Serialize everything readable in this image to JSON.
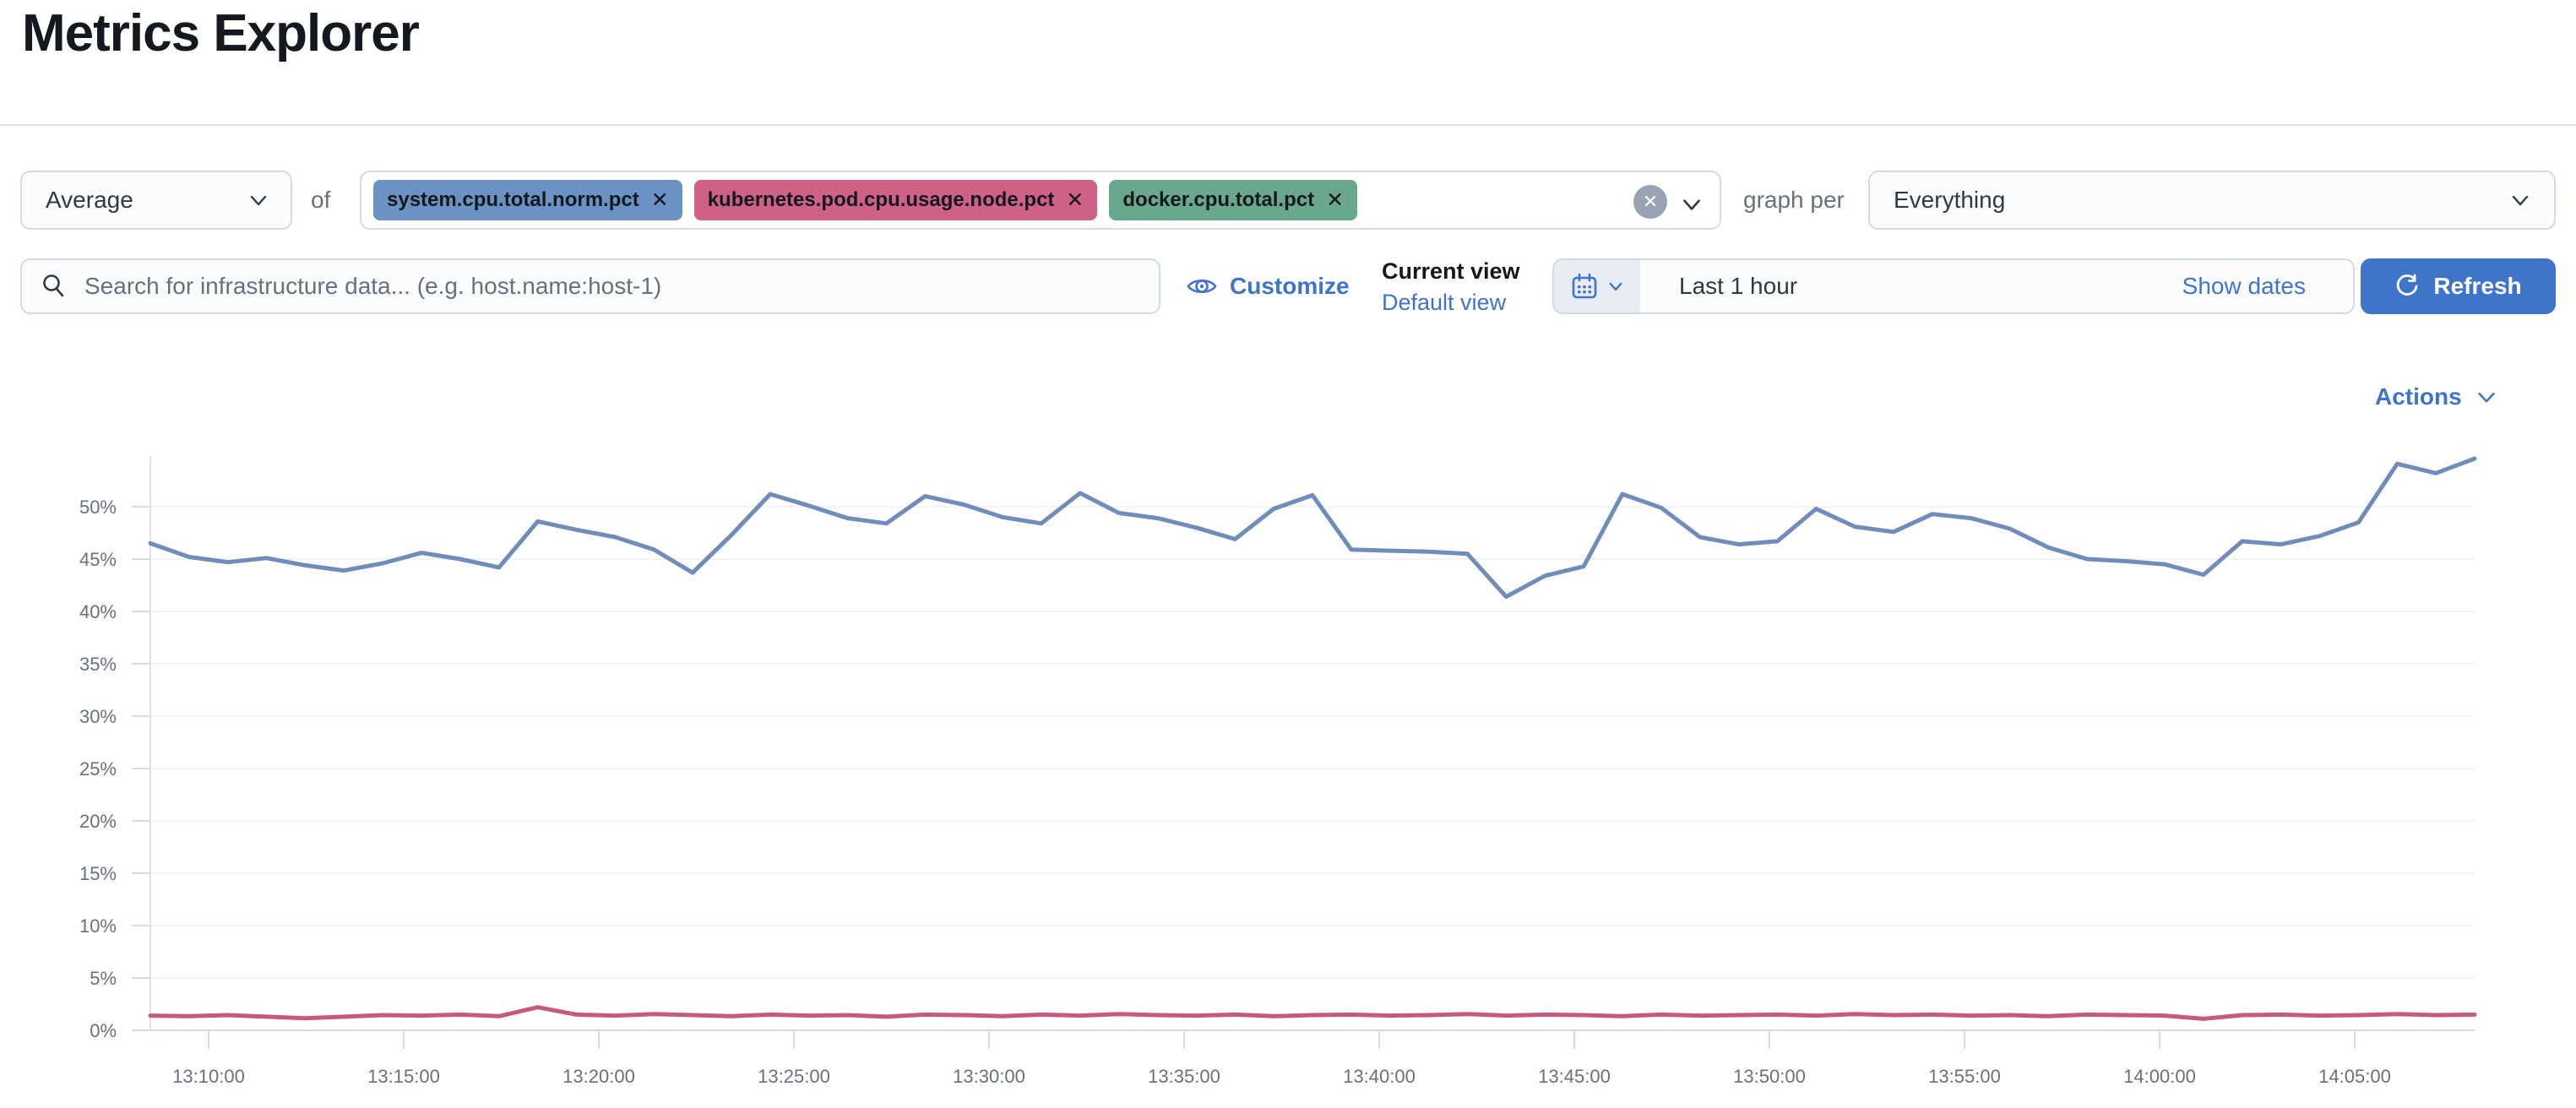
{
  "page": {
    "title": "Metrics Explorer"
  },
  "colors": {
    "accent_blue": "#3e74c9",
    "border": "#d3dae6",
    "text_gray": "#69707d",
    "badge_blue": "#6a92c3",
    "badge_pink": "#cf6086",
    "badge_green": "#69a88c",
    "line_blue": "#6e8dba",
    "line_pink": "#c75a7c"
  },
  "toolbar": {
    "aggregation": {
      "value": "Average"
    },
    "of_label": "of",
    "metrics": [
      {
        "label": "system.cpu.total.norm.pct",
        "remove_label": "✕",
        "color": "#6a92c3"
      },
      {
        "label": "kubernetes.pod.cpu.usage.node.pct",
        "remove_label": "✕",
        "color": "#cf6086"
      },
      {
        "label": "docker.cpu.total.pct",
        "remove_label": "✕",
        "color": "#69a88c"
      }
    ],
    "clear_label": "✕",
    "graph_per_label": "graph per",
    "group_by": {
      "value": "Everything"
    }
  },
  "search": {
    "placeholder": "Search for infrastructure data... (e.g. host.name:host-1)"
  },
  "view_controls": {
    "customize_label": "Customize",
    "current_view_label": "Current view",
    "default_view_label": "Default view"
  },
  "time_picker": {
    "range_label": "Last 1 hour",
    "show_dates_label": "Show dates",
    "refresh_label": "Refresh"
  },
  "chart": {
    "actions_label": "Actions",
    "chart_data": {
      "type": "line",
      "title": "",
      "xlabel": "",
      "ylabel": "",
      "ylim": [
        0,
        55
      ],
      "grid": true,
      "legend": false,
      "y_ticks": [
        {
          "label": "0%",
          "value": 0
        },
        {
          "label": "5%",
          "value": 5
        },
        {
          "label": "10%",
          "value": 10
        },
        {
          "label": "15%",
          "value": 15
        },
        {
          "label": "20%",
          "value": 20
        },
        {
          "label": "25%",
          "value": 25
        },
        {
          "label": "30%",
          "value": 30
        },
        {
          "label": "35%",
          "value": 35
        },
        {
          "label": "40%",
          "value": 40
        },
        {
          "label": "45%",
          "value": 45
        },
        {
          "label": "50%",
          "value": 50
        }
      ],
      "x_ticks": [
        "13:10:00",
        "13:15:00",
        "13:20:00",
        "13:25:00",
        "13:30:00",
        "13:35:00",
        "13:40:00",
        "13:45:00",
        "13:50:00",
        "13:55:00",
        "14:00:00",
        "14:05:00"
      ],
      "series": [
        {
          "name": "system.cpu.total.norm.pct",
          "color": "#6e8dba",
          "unit": "percent",
          "values": [
            46.5,
            45.2,
            44.7,
            45.1,
            44.4,
            43.9,
            44.6,
            45.6,
            45.0,
            44.2,
            48.6,
            47.8,
            47.1,
            45.9,
            43.7,
            47.3,
            51.2,
            50.1,
            48.9,
            48.4,
            51.0,
            50.2,
            49.0,
            48.4,
            51.3,
            49.4,
            48.9,
            48.0,
            46.9,
            49.8,
            51.1,
            45.9,
            45.8,
            45.7,
            45.5,
            41.4,
            43.4,
            44.3,
            51.2,
            49.9,
            47.1,
            46.4,
            46.7,
            49.8,
            48.1,
            47.6,
            49.3,
            48.9,
            47.9,
            46.1,
            45.0,
            44.8,
            44.5,
            43.5,
            46.7,
            46.4,
            47.2,
            48.5,
            54.1,
            53.2,
            54.6
          ]
        },
        {
          "name": "kubernetes.pod.cpu.usage.node.pct",
          "color": "#c75a7c",
          "unit": "percent",
          "values": [
            1.4,
            1.35,
            1.45,
            1.3,
            1.15,
            1.3,
            1.45,
            1.4,
            1.5,
            1.35,
            2.2,
            1.5,
            1.4,
            1.55,
            1.45,
            1.35,
            1.5,
            1.4,
            1.45,
            1.3,
            1.5,
            1.45,
            1.35,
            1.5,
            1.4,
            1.55,
            1.45,
            1.4,
            1.5,
            1.35,
            1.45,
            1.5,
            1.4,
            1.45,
            1.55,
            1.4,
            1.5,
            1.45,
            1.35,
            1.5,
            1.4,
            1.45,
            1.5,
            1.4,
            1.55,
            1.45,
            1.5,
            1.4,
            1.45,
            1.35,
            1.5,
            1.45,
            1.4,
            1.1,
            1.45,
            1.5,
            1.4,
            1.45,
            1.55,
            1.45,
            1.5
          ]
        }
      ]
    }
  }
}
